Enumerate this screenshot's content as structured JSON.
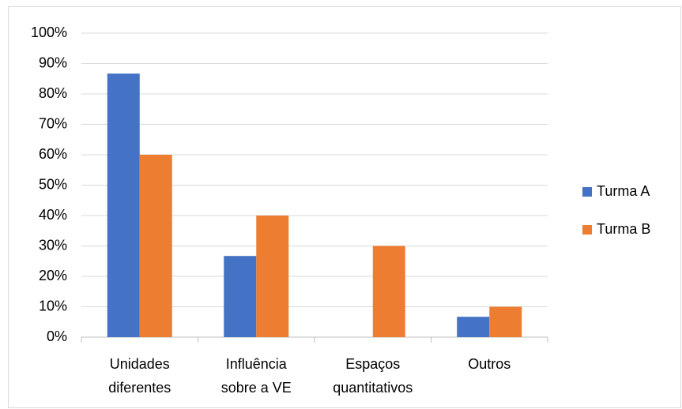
{
  "chart_data": {
    "type": "bar",
    "categories": [
      "Unidades\ndiferentes",
      "Influência\nsobre a VE",
      "Espaços\nquantitativos",
      "Outros"
    ],
    "series": [
      {
        "name": "Turma A",
        "color": "#4472c4",
        "values": [
          86.7,
          26.7,
          0,
          6.7
        ]
      },
      {
        "name": "Turma B",
        "color": "#ed7d31",
        "values": [
          60,
          40,
          30,
          10
        ]
      }
    ],
    "ylim": [
      0,
      100
    ],
    "yticks": [
      {
        "value": 0,
        "label": "0%"
      },
      {
        "value": 10,
        "label": "10%"
      },
      {
        "value": 20,
        "label": "20%"
      },
      {
        "value": 30,
        "label": "30%"
      },
      {
        "value": 40,
        "label": "40%"
      },
      {
        "value": 50,
        "label": "50%"
      },
      {
        "value": 60,
        "label": "60%"
      },
      {
        "value": 70,
        "label": "70%"
      },
      {
        "value": 80,
        "label": "80%"
      },
      {
        "value": 90,
        "label": "90%"
      },
      {
        "value": 100,
        "label": "100%"
      }
    ],
    "grid": true,
    "legend": "right"
  }
}
